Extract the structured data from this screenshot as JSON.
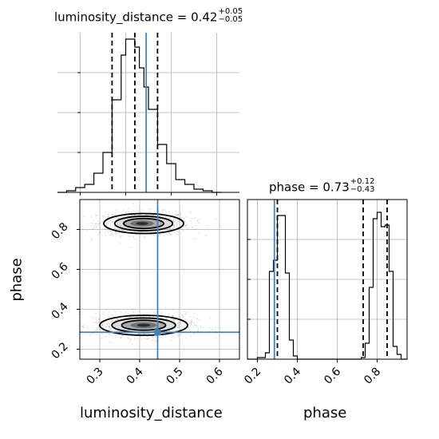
{
  "chart_data": [
    {
      "type": "histogram",
      "panel": "top-left",
      "title_param": "luminosity_distance",
      "title_value": "0.42",
      "title_plus": "+0.05",
      "title_minus": "−0.05",
      "x_range": [
        0.25,
        0.65
      ],
      "y_range": [
        0,
        1
      ],
      "grid": true,
      "bins": [
        {
          "x0": 0.25,
          "x1": 0.27,
          "h": 0.0
        },
        {
          "x0": 0.27,
          "x1": 0.29,
          "h": 0.01
        },
        {
          "x0": 0.29,
          "x1": 0.31,
          "h": 0.03
        },
        {
          "x0": 0.31,
          "x1": 0.33,
          "h": 0.05
        },
        {
          "x0": 0.33,
          "x1": 0.35,
          "h": 0.12
        },
        {
          "x0": 0.35,
          "x1": 0.37,
          "h": 0.25
        },
        {
          "x0": 0.37,
          "x1": 0.39,
          "h": 0.58
        },
        {
          "x0": 0.39,
          "x1": 0.4,
          "h": 0.86
        },
        {
          "x0": 0.4,
          "x1": 0.42,
          "h": 0.96
        },
        {
          "x0": 0.42,
          "x1": 0.43,
          "h": 0.91
        },
        {
          "x0": 0.43,
          "x1": 0.44,
          "h": 0.78
        },
        {
          "x0": 0.44,
          "x1": 0.45,
          "h": 0.66
        },
        {
          "x0": 0.45,
          "x1": 0.47,
          "h": 0.52
        },
        {
          "x0": 0.47,
          "x1": 0.49,
          "h": 0.3
        },
        {
          "x0": 0.49,
          "x1": 0.51,
          "h": 0.18
        },
        {
          "x0": 0.51,
          "x1": 0.53,
          "h": 0.08
        },
        {
          "x0": 0.53,
          "x1": 0.55,
          "h": 0.05
        },
        {
          "x0": 0.55,
          "x1": 0.57,
          "h": 0.02
        },
        {
          "x0": 0.57,
          "x1": 0.59,
          "h": 0.01
        },
        {
          "x0": 0.59,
          "x1": 0.61,
          "h": 0.0
        }
      ],
      "quantiles": [
        0.37,
        0.42,
        0.47
      ],
      "truth": 0.445
    },
    {
      "type": "contour-scatter",
      "panel": "bottom-left",
      "x_param": "luminosity_distance",
      "y_param": "phase",
      "x_range": [
        0.25,
        0.65
      ],
      "y_range": [
        0.15,
        0.95
      ],
      "x_ticks": [
        "0.3",
        "0.4",
        "0.5",
        "0.6"
      ],
      "x_tick_values": [
        0.3,
        0.4,
        0.5,
        0.6
      ],
      "y_ticks": [
        "0.2",
        "0.4",
        "0.6",
        "0.8"
      ],
      "y_tick_values": [
        0.2,
        0.4,
        0.6,
        0.8
      ],
      "modes": [
        {
          "cx": 0.41,
          "cy": 0.83,
          "sx": 0.05,
          "sy": 0.025
        },
        {
          "cx": 0.41,
          "cy": 0.32,
          "sx": 0.055,
          "sy": 0.025
        }
      ],
      "truth": {
        "x": 0.445,
        "y": 0.285
      },
      "grid": true
    },
    {
      "type": "histogram",
      "panel": "bottom-right",
      "title_param": "phase",
      "title_value": "0.73",
      "title_plus": "+0.12",
      "title_minus": "−0.43",
      "x_range": [
        0.15,
        0.95
      ],
      "x_ticks": [
        "0.2",
        "0.4",
        "0.6",
        "0.8"
      ],
      "x_tick_values": [
        0.2,
        0.4,
        0.6,
        0.8
      ],
      "y_range": [
        0,
        1
      ],
      "grid": true,
      "bins": [
        {
          "x0": 0.15,
          "x1": 0.2,
          "h": 0.0
        },
        {
          "x0": 0.2,
          "x1": 0.22,
          "h": 0.01
        },
        {
          "x0": 0.22,
          "x1": 0.24,
          "h": 0.01
        },
        {
          "x0": 0.24,
          "x1": 0.26,
          "h": 0.04
        },
        {
          "x0": 0.26,
          "x1": 0.28,
          "h": 0.55
        },
        {
          "x0": 0.28,
          "x1": 0.3,
          "h": 0.62
        },
        {
          "x0": 0.3,
          "x1": 0.32,
          "h": 0.9
        },
        {
          "x0": 0.32,
          "x1": 0.34,
          "h": 0.9
        },
        {
          "x0": 0.34,
          "x1": 0.36,
          "h": 0.54
        },
        {
          "x0": 0.36,
          "x1": 0.38,
          "h": 0.12
        },
        {
          "x0": 0.38,
          "x1": 0.4,
          "h": 0.02
        },
        {
          "x0": 0.4,
          "x1": 0.72,
          "h": 0.0
        },
        {
          "x0": 0.72,
          "x1": 0.74,
          "h": 0.01
        },
        {
          "x0": 0.74,
          "x1": 0.76,
          "h": 0.1
        },
        {
          "x0": 0.76,
          "x1": 0.78,
          "h": 0.45
        },
        {
          "x0": 0.78,
          "x1": 0.8,
          "h": 0.88
        },
        {
          "x0": 0.8,
          "x1": 0.82,
          "h": 0.92
        },
        {
          "x0": 0.82,
          "x1": 0.84,
          "h": 0.83
        },
        {
          "x0": 0.84,
          "x1": 0.86,
          "h": 0.84
        },
        {
          "x0": 0.86,
          "x1": 0.88,
          "h": 0.55
        },
        {
          "x0": 0.88,
          "x1": 0.9,
          "h": 0.08
        },
        {
          "x0": 0.9,
          "x1": 0.92,
          "h": 0.03
        },
        {
          "x0": 0.92,
          "x1": 0.95,
          "h": 0.0
        }
      ],
      "quantiles": [
        0.3,
        0.73,
        0.85
      ],
      "truth": 0.285
    }
  ],
  "labels": {
    "x_left": "luminosity_distance",
    "x_right": "phase",
    "y_bottom": "phase"
  },
  "colors": {
    "truth": "#4682b4",
    "hist": "#000000",
    "grid": "#b0b0b0",
    "scatter": "#808080"
  }
}
